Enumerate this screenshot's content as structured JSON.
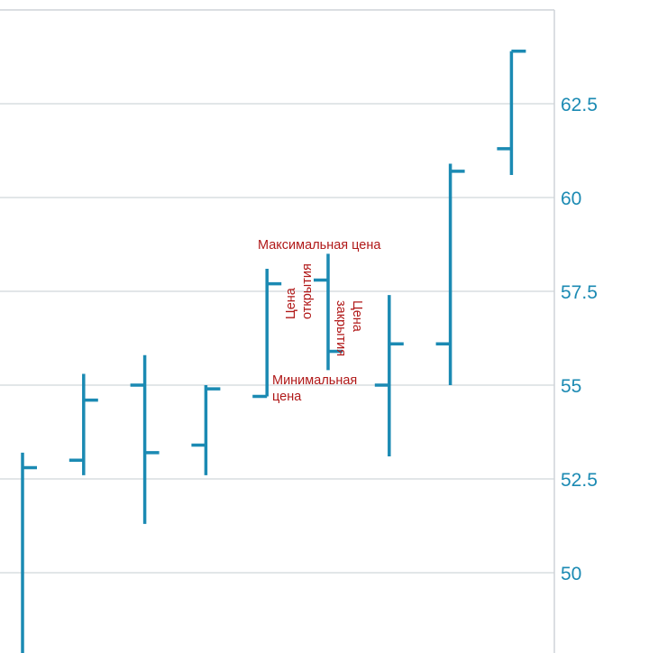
{
  "chart_data": {
    "type": "ohlc",
    "title": "",
    "xlabel": "",
    "ylabel": "",
    "ylim": [
      47.5,
      64.5
    ],
    "y_ticks": [
      50,
      52.5,
      55,
      57.5,
      60,
      62.5
    ],
    "y_tick_labels": [
      "50",
      "52.5",
      "55",
      "57.5",
      "60",
      "62.5"
    ],
    "y_axis_position": "right",
    "grid": true,
    "color": "#1b8ab3",
    "annotation_color": "#b01818",
    "bars": [
      {
        "open": null,
        "high": 53.2,
        "low": 47.6,
        "close": 52.8
      },
      {
        "open": 53.0,
        "high": 55.3,
        "low": 52.6,
        "close": 54.6
      },
      {
        "open": 55.0,
        "high": 55.8,
        "low": 51.3,
        "close": 53.2
      },
      {
        "open": 53.4,
        "high": 55.0,
        "low": 52.6,
        "close": 54.9
      },
      {
        "open": 54.7,
        "high": 58.1,
        "low": 54.7,
        "close": 57.7
      },
      {
        "open": 57.8,
        "high": 58.5,
        "low": 55.4,
        "close": 55.9
      },
      {
        "open": 55.0,
        "high": 57.4,
        "low": 53.1,
        "close": 56.1
      },
      {
        "open": 56.1,
        "high": 60.9,
        "low": 55.0,
        "close": 60.7
      },
      {
        "open": 61.3,
        "high": 63.9,
        "low": 60.6,
        "close": 63.9
      }
    ],
    "annotations": {
      "high_label": "Максимальная цена",
      "low_label_line1": "Минимальная",
      "low_label_line2": "цена",
      "open_label_line1": "Цена",
      "open_label_line2": "открытия",
      "close_label_line1": "Цена",
      "close_label_line2": "закрытия"
    }
  }
}
